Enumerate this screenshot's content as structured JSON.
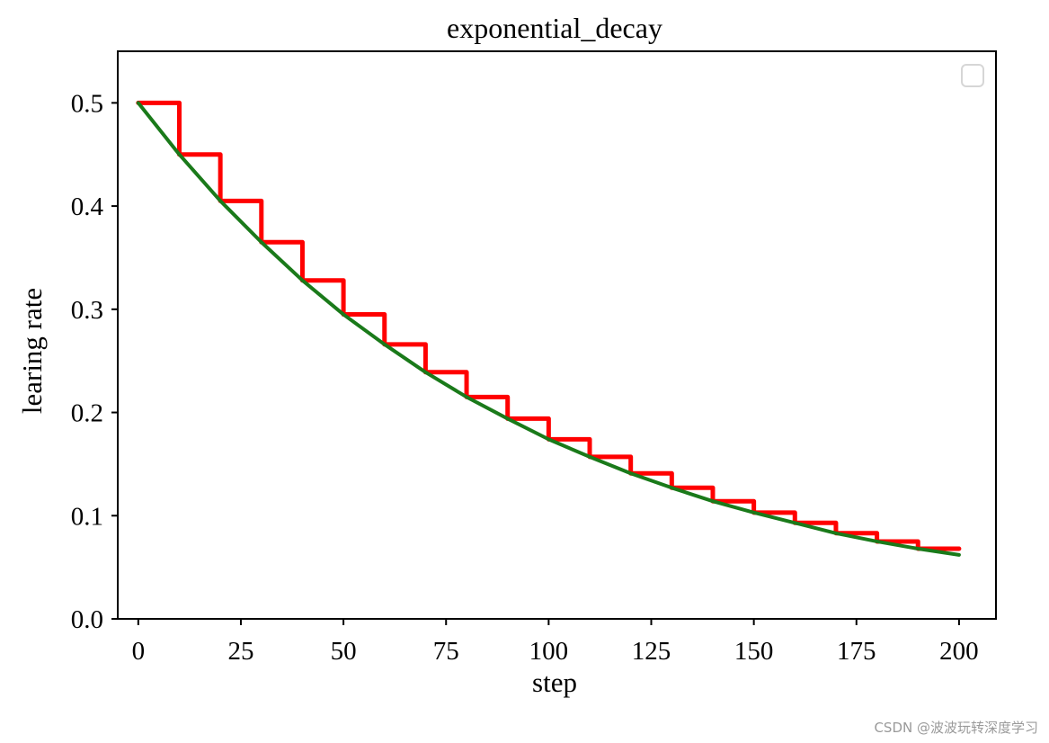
{
  "chart_data": {
    "type": "line",
    "title": "exponential_decay",
    "xlabel": "step",
    "ylabel": "learing rate",
    "x_ticks": [
      "0",
      "25",
      "50",
      "75",
      "100",
      "125",
      "150",
      "175",
      "200"
    ],
    "y_ticks": [
      "0.0",
      "0.1",
      "0.2",
      "0.3",
      "0.4",
      "0.5"
    ],
    "xlim": [
      -5,
      209
    ],
    "ylim": [
      0,
      0.55
    ],
    "grid": false,
    "legend": {
      "position": "top-right",
      "entries": []
    },
    "series": [
      {
        "style": "step",
        "color": "#ff0000",
        "x": [
          0,
          10,
          20,
          30,
          40,
          50,
          60,
          70,
          80,
          90,
          100,
          110,
          120,
          130,
          140,
          150,
          160,
          170,
          180,
          190,
          200
        ],
        "y": [
          0.5,
          0.45,
          0.405,
          0.365,
          0.328,
          0.295,
          0.266,
          0.239,
          0.215,
          0.194,
          0.174,
          0.157,
          0.141,
          0.127,
          0.114,
          0.103,
          0.093,
          0.083,
          0.075,
          0.068,
          0.068
        ]
      },
      {
        "style": "smooth",
        "color": "#1a7a1a",
        "x": [
          0,
          10,
          20,
          30,
          40,
          50,
          60,
          70,
          80,
          90,
          100,
          110,
          120,
          130,
          140,
          150,
          160,
          170,
          180,
          190,
          200
        ],
        "y": [
          0.5,
          0.45,
          0.405,
          0.365,
          0.328,
          0.295,
          0.266,
          0.239,
          0.215,
          0.194,
          0.174,
          0.157,
          0.141,
          0.127,
          0.114,
          0.103,
          0.093,
          0.083,
          0.075,
          0.068,
          0.062
        ]
      }
    ]
  },
  "watermark": "CSDN @波波玩转深度学习"
}
